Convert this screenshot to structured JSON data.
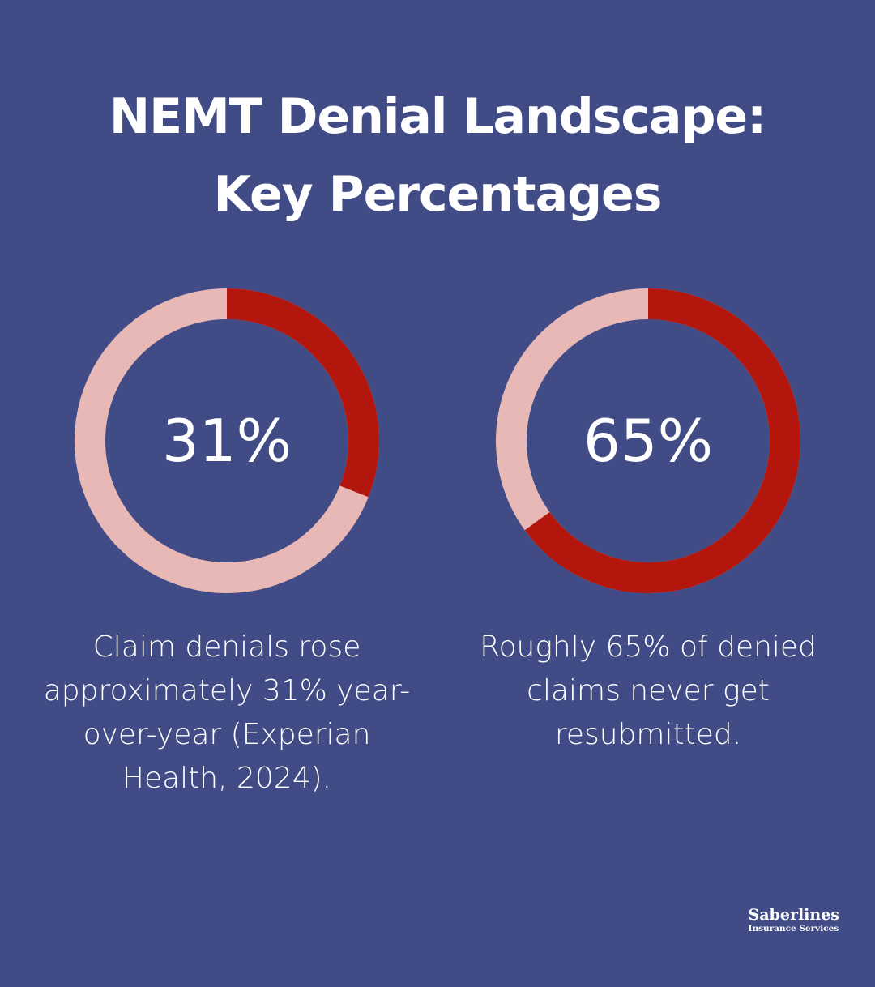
{
  "title": {
    "line1": "NEMT Denial Landscape:",
    "line2": "Key Percentages"
  },
  "colors": {
    "background": "#414c86",
    "filled": "#b3160d",
    "remaining": "#e8b8b6",
    "text": "#ffffff"
  },
  "chart_data": [
    {
      "type": "pie",
      "variant": "donut",
      "value_percent": 31,
      "center_label": "31%",
      "caption": "Claim denials rose approximately 31% year-over-year (Experian Health, 2024).",
      "caption_lines": [
        "Claim denials rose",
        "approximately 31% year-",
        "over-year (Experian",
        "Health, 2024)."
      ]
    },
    {
      "type": "pie",
      "variant": "donut",
      "value_percent": 65,
      "center_label": "65%",
      "caption": "Roughly 65% of denied claims never get resubmitted.",
      "caption_lines": [
        "Roughly 65% of denied",
        "claims never get",
        "resubmitted."
      ]
    }
  ],
  "logo": {
    "name": "Saberlines",
    "tagline": "Insurance Services"
  }
}
